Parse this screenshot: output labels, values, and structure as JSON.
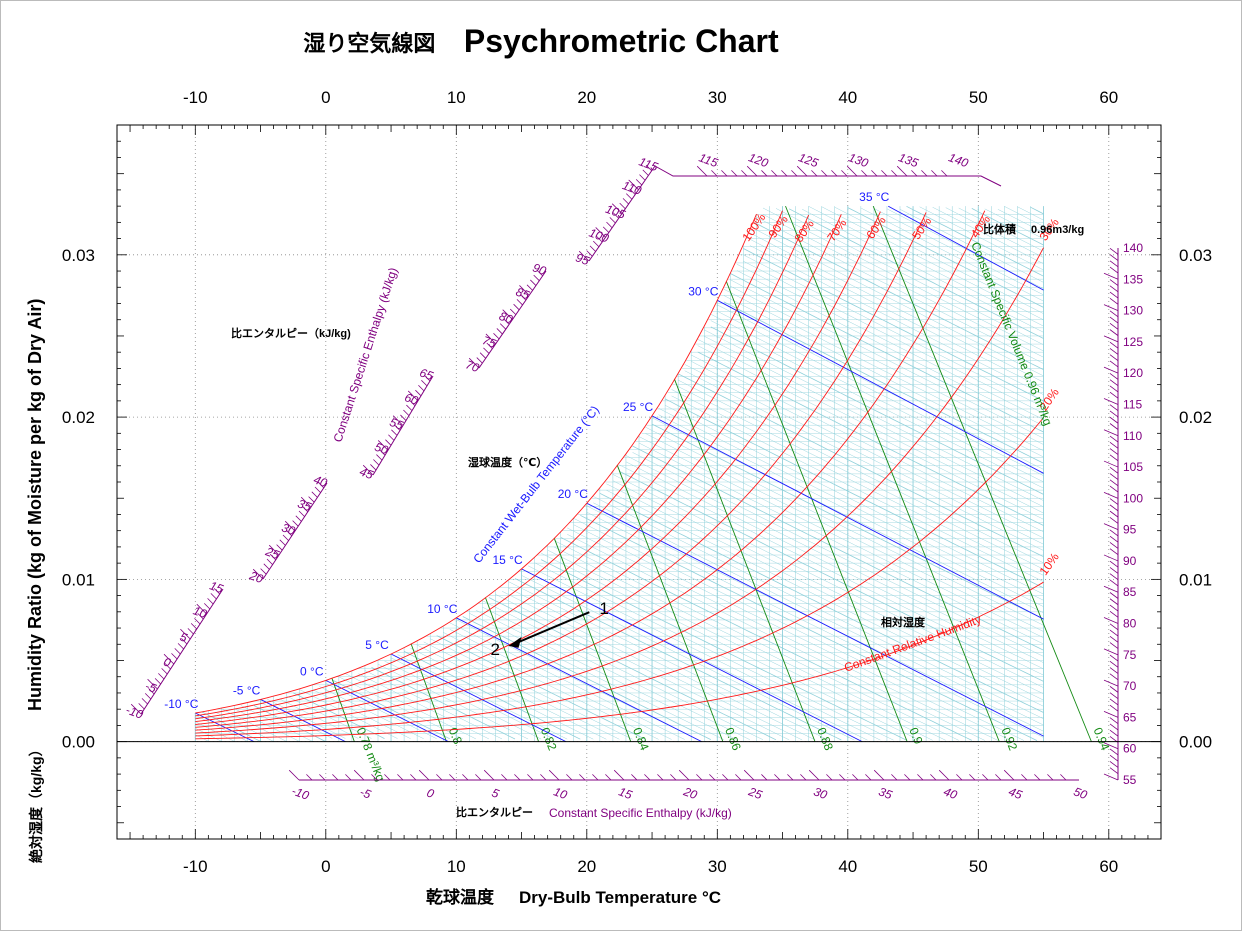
{
  "title": {
    "jp": "湿り空気線図",
    "en": "Psychrometric Chart"
  },
  "labels": {
    "xlabel_jp": "乾球温度",
    "xlabel_en": "Dry-Bulb Temperature °C",
    "ylabel_jp": "絶対湿度（kg/kg）",
    "ylabel_en": "Humidity Ratio (kg of Moisture per kg of Dry Air)",
    "enthalpy_jp": "比エンタルピー（kJ/kg)",
    "enthalpy_en": "Constant Specific Enthalpy (kJ/kg)",
    "enthalpy_bottom_jp": "比エンタルピー",
    "enthalpy_bottom_en": "Constant Specific Enthalpy (kJ/kg)",
    "wetbulb_jp": "湿球温度（℃）",
    "wetbulb_en": "Constant Wet-Bulb Temperature (°C)",
    "rh_jp": "相対湿度",
    "rh_en": "Constant Relative Humidity",
    "volume_jp": "比体積",
    "volume_value": "0.96m3/kg",
    "volume_en": "Constant Specific Volume 0.96 m³/kg"
  },
  "chart_data": {
    "type": "line",
    "xlim": [
      -16,
      64
    ],
    "ylim": [
      -0.006,
      0.038
    ],
    "x_ticks": [
      -10,
      0,
      10,
      20,
      30,
      40,
      50,
      60
    ],
    "x_tick_labels": [
      "-10",
      "0",
      "10",
      "20",
      "30",
      "40",
      "50",
      "60"
    ],
    "y_ticks": [
      0.0,
      0.01,
      0.02,
      0.03
    ],
    "y_tick_labels": [
      "0.00",
      "0.01",
      "0.02",
      "0.03"
    ],
    "grid": true,
    "relative_humidity_curves": [
      {
        "label": "100%",
        "rh": 100
      },
      {
        "label": "90%",
        "rh": 90
      },
      {
        "label": "80%",
        "rh": 80
      },
      {
        "label": "70%",
        "rh": 70
      },
      {
        "label": "60%",
        "rh": 60
      },
      {
        "label": "50%",
        "rh": 50
      },
      {
        "label": "40%",
        "rh": 40
      },
      {
        "label": "30%",
        "rh": 30
      },
      {
        "label": "20%",
        "rh": 20
      },
      {
        "label": "10%",
        "rh": 10
      }
    ],
    "wet_bulb_lines": [
      {
        "label": "-10 °C",
        "t": -10
      },
      {
        "label": "-5 °C",
        "t": -5
      },
      {
        "label": "0 °C",
        "t": 0
      },
      {
        "label": "5 °C",
        "t": 5
      },
      {
        "label": "10 °C",
        "t": 10
      },
      {
        "label": "15 °C",
        "t": 15
      },
      {
        "label": "20 °C",
        "t": 20
      },
      {
        "label": "25 °C",
        "t": 25
      },
      {
        "label": "30 °C",
        "t": 30
      },
      {
        "label": "35 °C",
        "t": 35
      }
    ],
    "specific_volume_lines": [
      {
        "label": "0.78 m³/kg",
        "v": 0.78
      },
      {
        "label": "0.8",
        "v": 0.8
      },
      {
        "label": "0.82",
        "v": 0.82
      },
      {
        "label": "0.84",
        "v": 0.84
      },
      {
        "label": "0.86",
        "v": 0.86
      },
      {
        "label": "0.88",
        "v": 0.88
      },
      {
        "label": "0.9",
        "v": 0.9
      },
      {
        "label": "0.92",
        "v": 0.92
      },
      {
        "label": "0.94",
        "v": 0.94
      }
    ],
    "enthalpy_scales": {
      "bottom": [
        "-10",
        "-5",
        "0",
        "5",
        "10",
        "15",
        "20",
        "25",
        "30",
        "35",
        "40",
        "45",
        "50"
      ],
      "right": [
        "55",
        "60",
        "65",
        "70",
        "75",
        "80",
        "85",
        "90",
        "95",
        "100",
        "105",
        "110",
        "115",
        "120",
        "125",
        "130",
        "135",
        "140"
      ],
      "top": [
        "115",
        "120",
        "125",
        "130",
        "135",
        "140"
      ],
      "diag1": [
        "-10",
        "-5",
        "0",
        "5",
        "10",
        "15"
      ],
      "diag2": [
        "20",
        "25",
        "30",
        "35",
        "40"
      ],
      "diag3": [
        "45",
        "50",
        "55",
        "60",
        "65"
      ],
      "diag4": [
        "70",
        "75",
        "80",
        "85",
        "90"
      ],
      "diag5": [
        "95",
        "100",
        "105",
        "110",
        "115"
      ]
    },
    "points": [
      {
        "label": "1",
        "t": 20.5,
        "w": 0.0081
      },
      {
        "label": "2",
        "t": 14.0,
        "w": 0.0059
      }
    ]
  },
  "colors": {
    "rh": "#ff1a1a",
    "wetbulb": "#1a1aff",
    "volume": "#138a13",
    "enthalpy": "#800080",
    "grid_fine": "#8fd0da",
    "axis": "#000000"
  }
}
